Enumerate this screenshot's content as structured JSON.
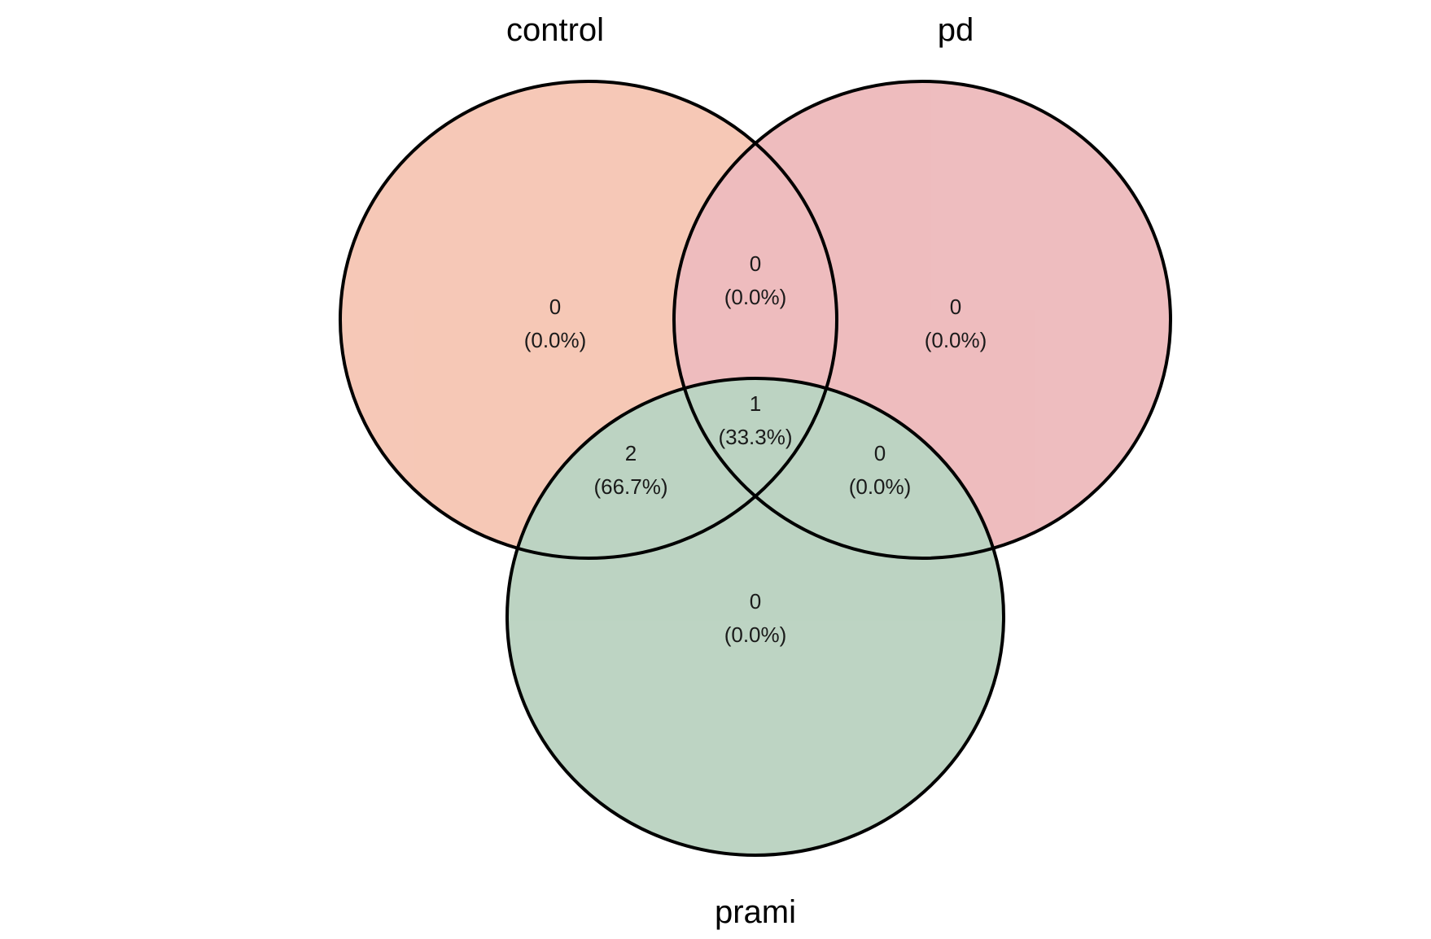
{
  "diagram": {
    "type": "venn",
    "sets": [
      {
        "id": "control",
        "label": "control",
        "color": "#EE9270"
      },
      {
        "id": "pd",
        "label": "pd",
        "color": "#DE7B7F"
      },
      {
        "id": "prami",
        "label": "prami",
        "color": "#7CA987"
      }
    ],
    "regions": [
      {
        "id": "control-only",
        "sets": [
          "control"
        ],
        "count": "0",
        "percent": "(0.0%)"
      },
      {
        "id": "pd-only",
        "sets": [
          "pd"
        ],
        "count": "0",
        "percent": "(0.0%)"
      },
      {
        "id": "prami-only",
        "sets": [
          "prami"
        ],
        "count": "0",
        "percent": "(0.0%)"
      },
      {
        "id": "control-pd",
        "sets": [
          "control",
          "pd"
        ],
        "count": "0",
        "percent": "(0.0%)"
      },
      {
        "id": "control-prami",
        "sets": [
          "control",
          "prami"
        ],
        "count": "2",
        "percent": "(66.7%)"
      },
      {
        "id": "pd-prami",
        "sets": [
          "pd",
          "prami"
        ],
        "count": "0",
        "percent": "(0.0%)"
      },
      {
        "id": "all-three",
        "sets": [
          "control",
          "pd",
          "prami"
        ],
        "count": "1",
        "percent": "(33.3%)"
      }
    ]
  }
}
